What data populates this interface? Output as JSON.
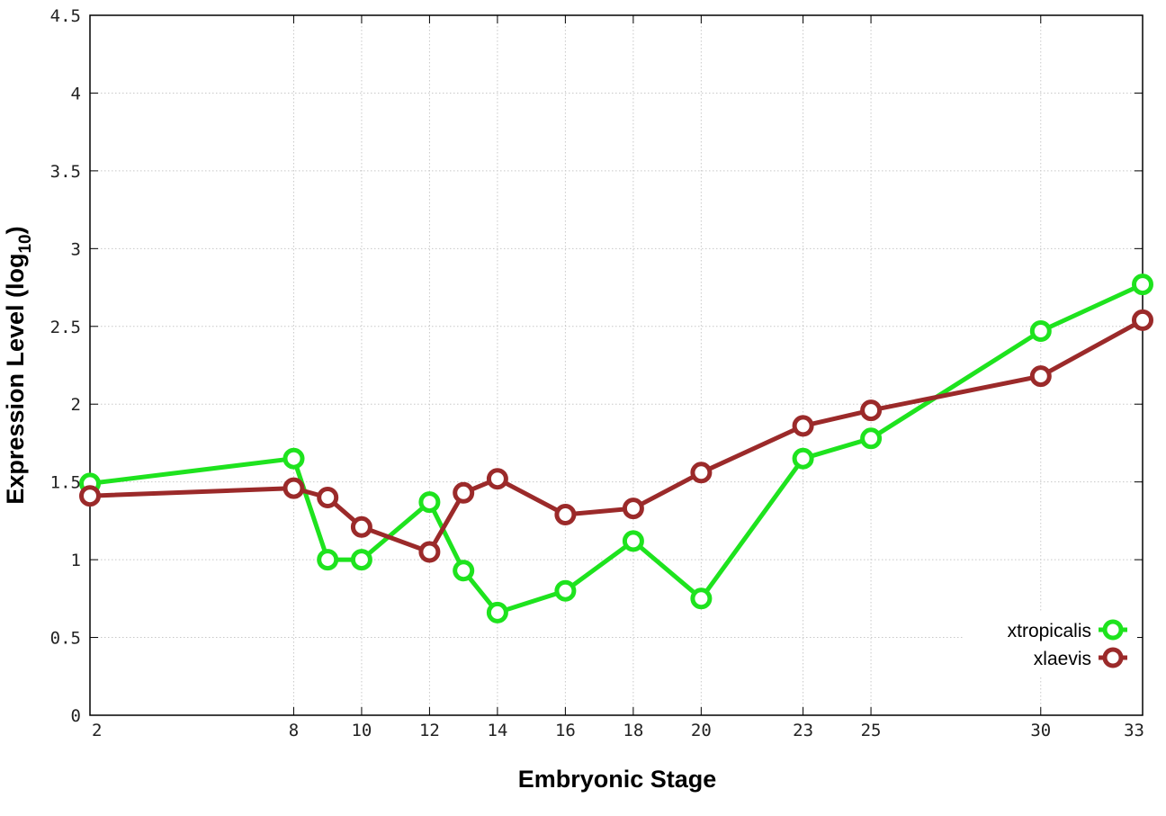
{
  "chart_data": {
    "type": "line",
    "xlabel": "Embryonic Stage",
    "ylabel_main": "Expression Level (log",
    "ylabel_sub": "10",
    "ylabel_close": ")",
    "x_categories": [
      "2",
      "8",
      "9",
      "10",
      "12",
      "13",
      "14",
      "16",
      "18",
      "20",
      "23",
      "25",
      "30",
      "33"
    ],
    "x_tick_labels": [
      "2",
      "8",
      "10",
      "12",
      "14",
      "16",
      "18",
      "20",
      "23",
      "25",
      "30",
      "33"
    ],
    "y_ticks": [
      "0",
      "0.5",
      "1",
      "1.5",
      "2",
      "2.5",
      "3",
      "3.5",
      "4",
      "4.5"
    ],
    "ylim": [
      0,
      4.5
    ],
    "grid": true,
    "legend_position": "bottom-right",
    "series": [
      {
        "name": "xtropicalis",
        "color": "#1ee31e",
        "values": [
          1.49,
          1.65,
          1.0,
          1.0,
          1.37,
          0.93,
          0.66,
          0.8,
          1.12,
          0.75,
          1.65,
          1.78,
          2.47,
          2.77
        ]
      },
      {
        "name": "xlaevis",
        "color": "#9b2a2a",
        "values": [
          1.41,
          1.46,
          1.4,
          1.21,
          1.05,
          1.43,
          1.52,
          1.29,
          1.33,
          1.56,
          1.86,
          1.96,
          2.18,
          2.54
        ]
      }
    ]
  }
}
